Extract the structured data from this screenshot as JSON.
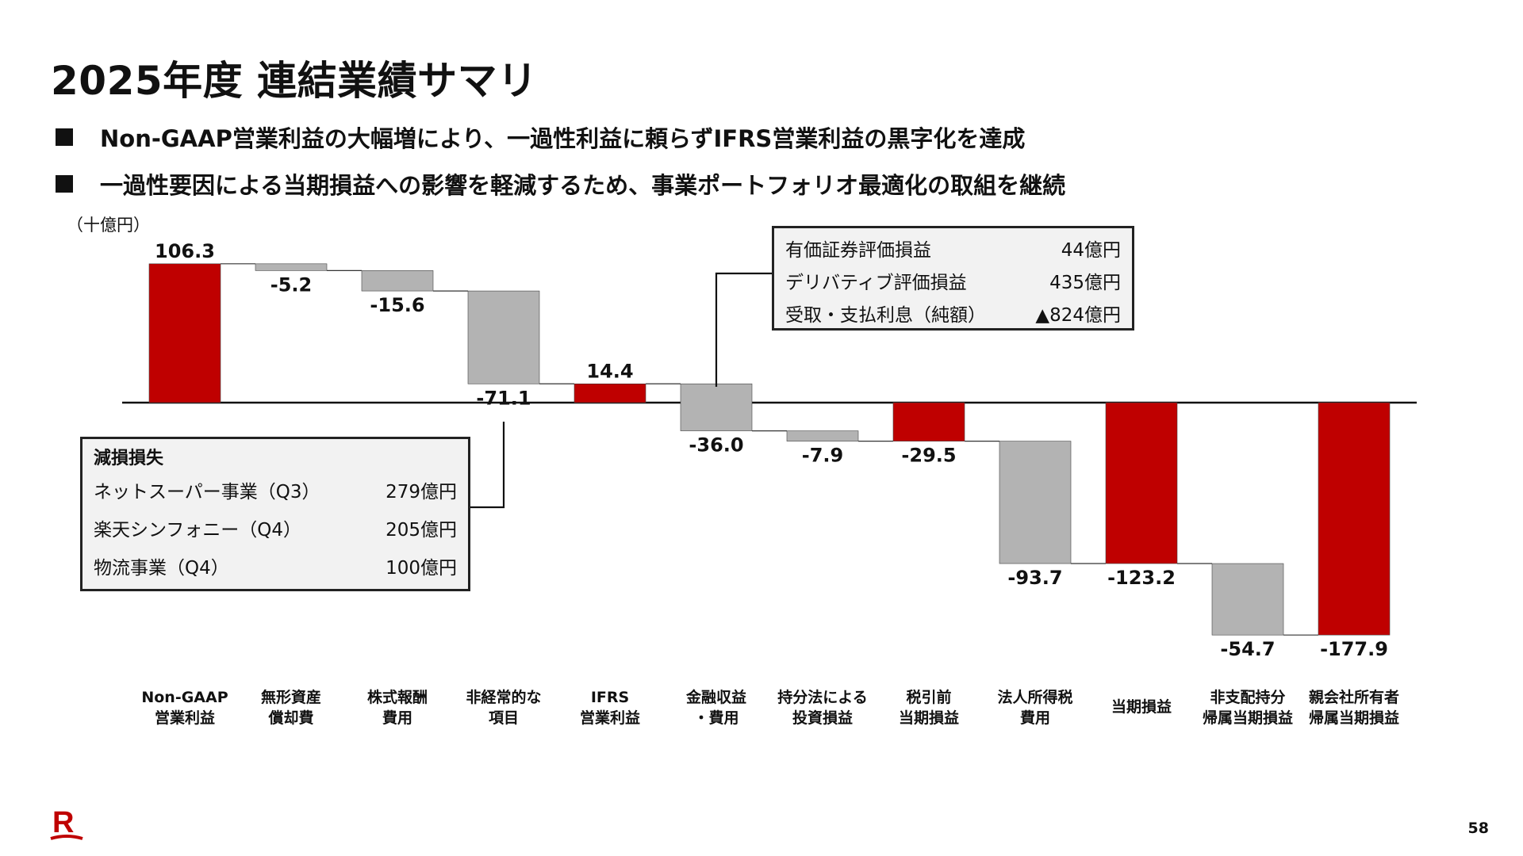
{
  "slide": {
    "title": "2025年度 連結業績サマリ",
    "bullets": [
      "Non-GAAP営業利益の大幅増により、一過性利益に頼らずIFRS営業利益の黒字化を達成",
      "一過性要因による当期損益への影響を軽減するため、事業ポートフォリオ最適化の取組を継続"
    ],
    "unit": "（十億円）",
    "page_number": "58"
  },
  "colors": {
    "red": "#bf0000",
    "gray": "#b3b3b3",
    "border": "#222222",
    "box_bg": "#f2f2f2"
  },
  "chart_data": {
    "type": "bar",
    "subtype": "waterfall",
    "unit": "十億円",
    "categories": [
      "Non-GAAP\n営業利益",
      "無形資産\n償却費",
      "株式報酬\n費用",
      "非経常的な\n項目",
      "IFRS\n営業利益",
      "金融収益\n・費用",
      "持分法による\n投資損益",
      "税引前\n当期損益",
      "法人所得税\n費用",
      "当期損益",
      "非支配持分\n帰属当期損益",
      "親会社所有者\n帰属当期損益"
    ],
    "values": [
      106.3,
      -5.2,
      -15.6,
      -71.1,
      14.4,
      -36.0,
      -7.9,
      -29.5,
      -93.7,
      -123.2,
      -54.7,
      -177.9
    ],
    "labels": [
      "106.3",
      "-5.2",
      "-15.6",
      "-71.1",
      "14.4",
      "-36.0",
      "-7.9",
      "-29.5",
      "-93.7",
      "-123.2",
      "-54.7",
      "-177.9"
    ],
    "bar_kind": [
      "total",
      "delta",
      "delta",
      "delta",
      "total",
      "delta",
      "delta",
      "total",
      "delta",
      "total",
      "delta",
      "total"
    ]
  },
  "impairment_box": {
    "title": "減損損失",
    "rows": [
      {
        "label": "ネットスーパー事業（Q3）",
        "value": "279億円"
      },
      {
        "label": "楽天シンフォニー（Q4）",
        "value": "205億円"
      },
      {
        "label": "物流事業（Q4）",
        "value": "100億円"
      }
    ]
  },
  "finance_box": {
    "rows": [
      {
        "label": "有価証券評価損益",
        "value": "44億円"
      },
      {
        "label": "デリバティブ評価損益",
        "value": "435億円"
      },
      {
        "label": "受取・支払利息（純額）",
        "value": "▲824億円"
      }
    ]
  }
}
